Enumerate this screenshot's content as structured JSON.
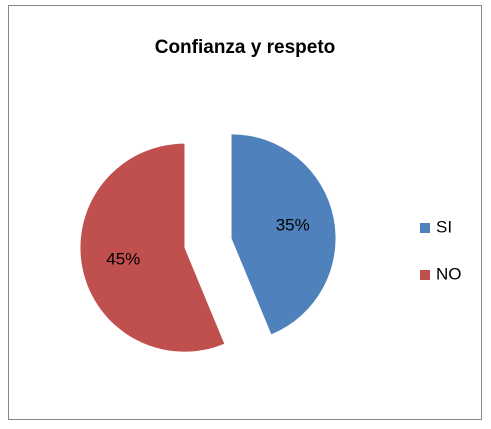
{
  "chart_data": {
    "type": "pie",
    "title": "Confianza y respeto",
    "categories": [
      "SI",
      "NO"
    ],
    "values": [
      35,
      45
    ],
    "value_labels": [
      "35%",
      "45%"
    ],
    "colors": [
      "#4f81bd",
      "#c0504d"
    ],
    "legend": "right"
  }
}
